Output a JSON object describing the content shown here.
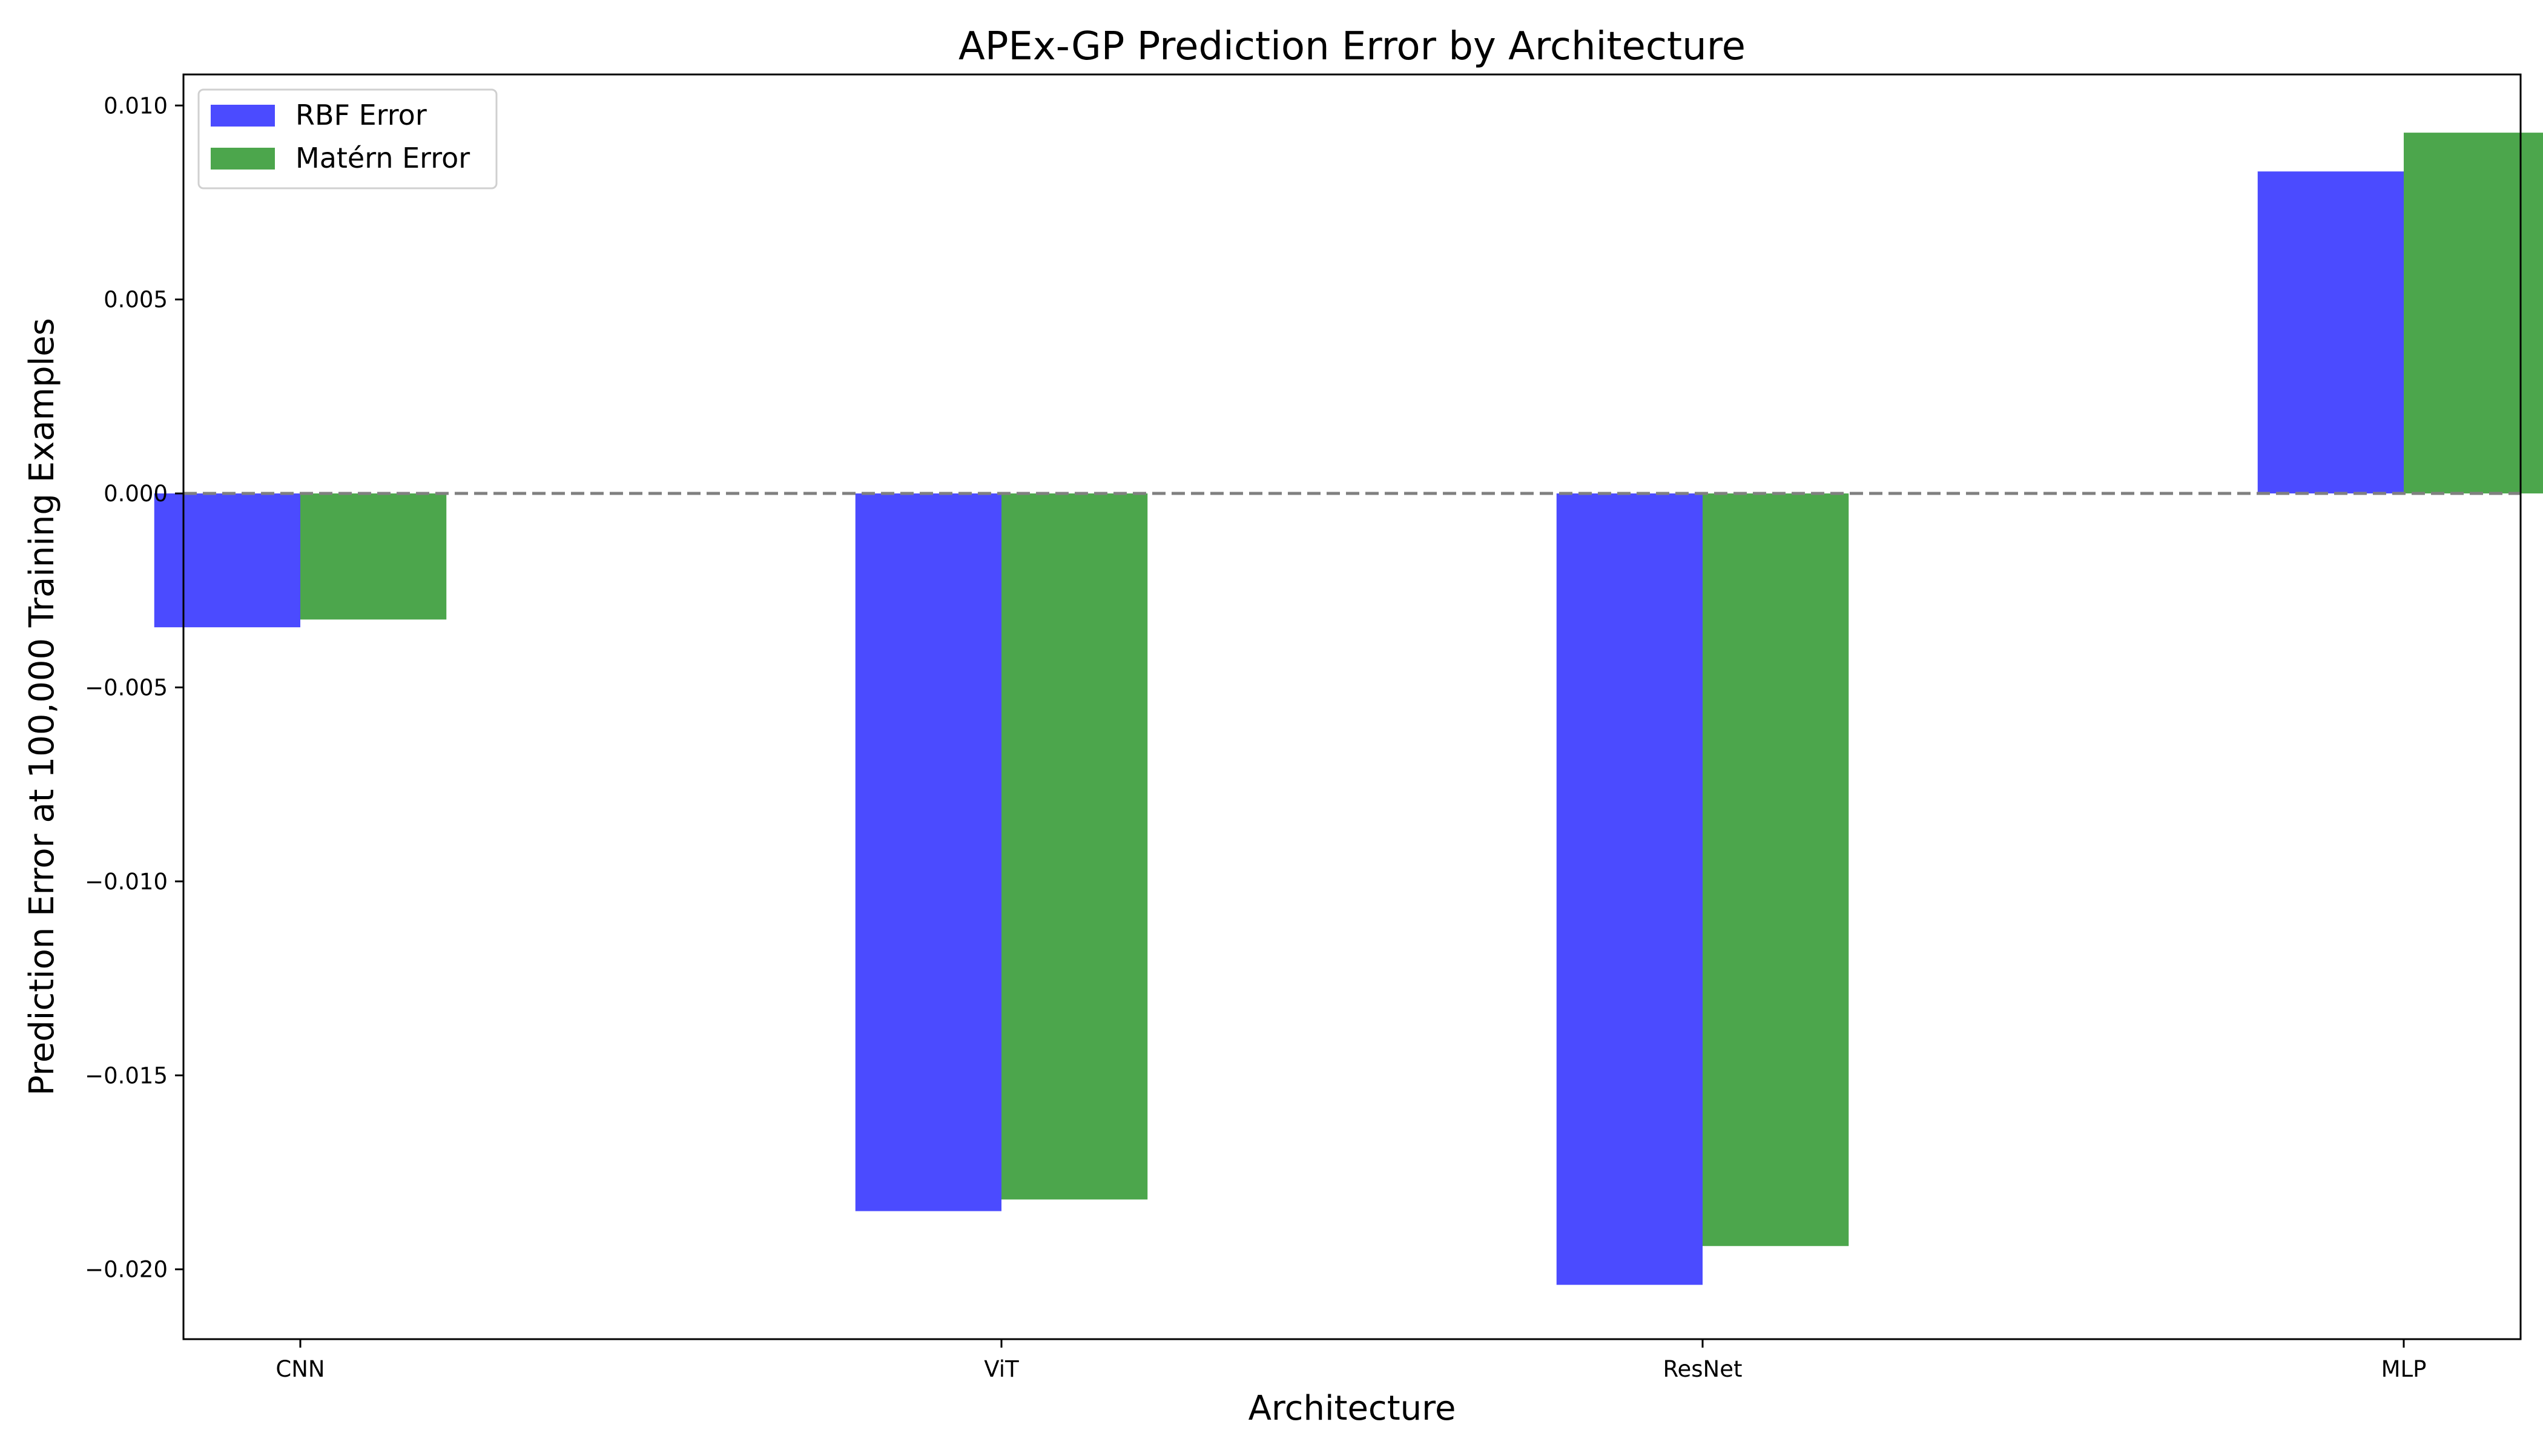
{
  "chart_data": {
    "type": "bar",
    "title": "APEx-GP Prediction Error by Architecture",
    "xlabel": "Architecture",
    "ylabel": "Prediction Error at 100,000 Training Examples",
    "categories": [
      "CNN",
      "ViT",
      "ResNet",
      "MLP"
    ],
    "series": [
      {
        "name": "RBF Error",
        "color": "#4b4bff",
        "values": [
          -0.00345,
          -0.0185,
          -0.0204,
          0.0083
        ]
      },
      {
        "name": "Matérn Error",
        "color": "#4ca64c",
        "values": [
          -0.00325,
          -0.0182,
          -0.0194,
          0.0093
        ]
      }
    ],
    "ylim": [
      -0.0218,
      0.0108
    ],
    "yticks": [
      -0.02,
      -0.015,
      -0.01,
      -0.005,
      0.0,
      0.005,
      0.01
    ],
    "ytick_labels": [
      "−0.020",
      "−0.015",
      "−0.010",
      "−0.005",
      "0.000",
      "0.005",
      "0.010"
    ],
    "reference_line": {
      "y": 0,
      "style": "dashed",
      "color": "#808080"
    },
    "legend": {
      "placement": "top-left"
    },
    "grid": false
  }
}
